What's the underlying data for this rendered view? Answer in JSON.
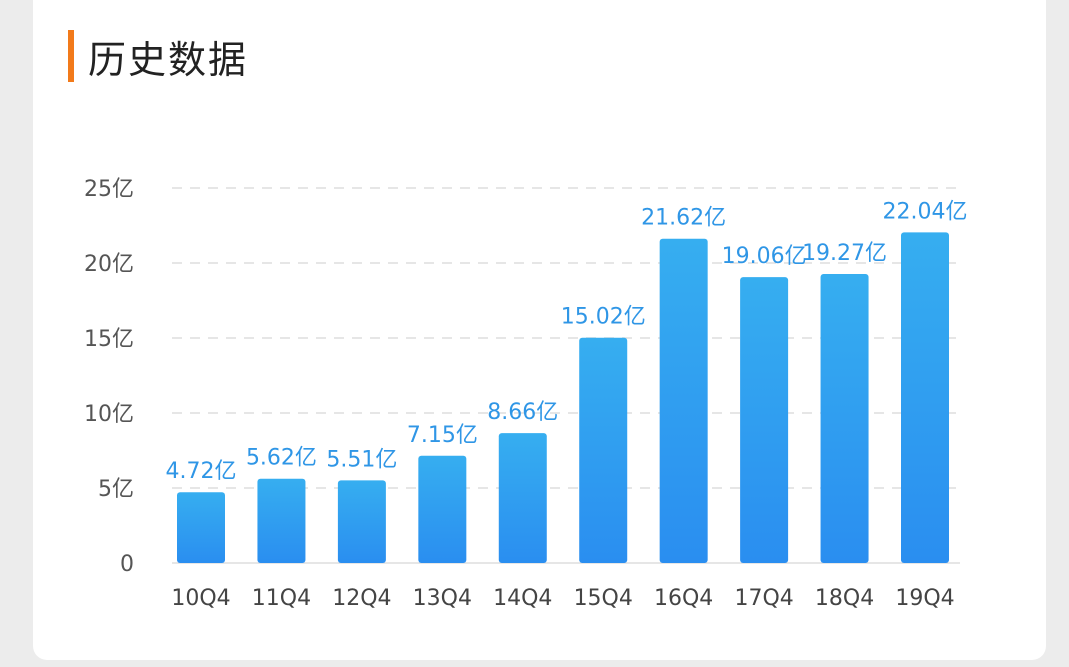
{
  "header": {
    "title": "历史数据"
  },
  "colors": {
    "accent_bar": "#f27a1a",
    "bar_top": "#36aef0",
    "bar_bottom": "#2a8ef0",
    "label": "#2f96e6",
    "grid": "#e6e6e6"
  },
  "chart_data": {
    "type": "bar",
    "categories": [
      "10Q4",
      "11Q4",
      "12Q4",
      "13Q4",
      "14Q4",
      "15Q4",
      "16Q4",
      "17Q4",
      "18Q4",
      "19Q4"
    ],
    "values": [
      4.72,
      5.62,
      5.51,
      7.15,
      8.66,
      15.02,
      21.62,
      19.06,
      19.27,
      22.04
    ],
    "data_labels": [
      "4.72亿",
      "5.62亿",
      "5.51亿",
      "7.15亿",
      "8.66亿",
      "15.02亿",
      "21.62亿",
      "19.06亿",
      "19.27亿",
      "22.04亿"
    ],
    "yticks": [
      0,
      5,
      10,
      15,
      20,
      25
    ],
    "ytick_labels": [
      "0",
      "5亿",
      "10亿",
      "15亿",
      "20亿",
      "25亿"
    ],
    "ylim": [
      0,
      25
    ],
    "grid": true,
    "grid_style": "dashed-horizontal",
    "legend": "none",
    "title": "历史数据",
    "xlabel": "",
    "ylabel": ""
  }
}
